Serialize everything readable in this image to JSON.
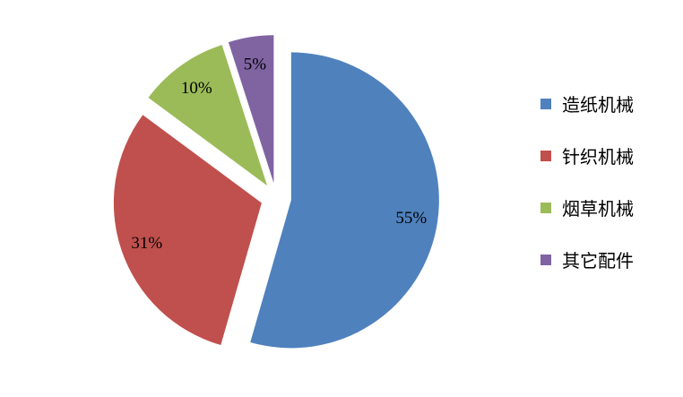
{
  "chart_data": {
    "type": "pie",
    "exploded": true,
    "legend_position": "right",
    "categories": [
      "造纸机械",
      "针织机械",
      "烟草机械",
      "其它配件"
    ],
    "values": [
      55,
      31,
      10,
      5
    ],
    "labels": [
      "55%",
      "31%",
      "10%",
      "5%"
    ],
    "colors": [
      "#4F81BD",
      "#C0504D",
      "#9BBB59",
      "#8064A2"
    ]
  }
}
